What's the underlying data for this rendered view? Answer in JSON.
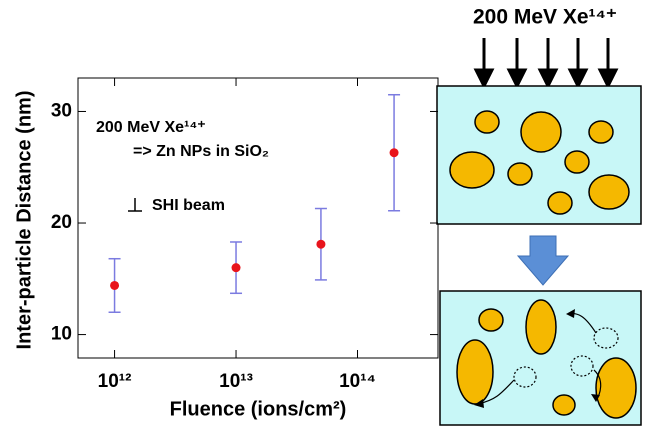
{
  "chart_data": {
    "type": "scatter",
    "x_label": "Fluence (ions/cm²)",
    "y_label": "Inter-particle Distance (nm)",
    "annotations": [
      "200 MeV Xe¹⁴⁺",
      "=> Zn NPs in SiO₂",
      "SHI beam"
    ],
    "x": [
      1000000000000.0,
      10000000000000.0,
      50000000000000.0,
      200000000000000.0
    ],
    "series": [
      {
        "color": "#e8141c",
        "error_color": "#7b7be0",
        "values": [
          14.4,
          16.0,
          18.1,
          26.3
        ],
        "errors": [
          2.4,
          2.3,
          3.2,
          5.2
        ]
      }
    ],
    "x_log": true,
    "xlim": [
      500000000000.0,
      460000000000000.0
    ],
    "xticks": [
      {
        "value": 1000000000000.0,
        "label": "10¹²"
      },
      {
        "value": 10000000000000.0,
        "label": "10¹³"
      },
      {
        "value": 100000000000000.0,
        "label": "10¹⁴"
      }
    ],
    "ylim": [
      7.9,
      33
    ],
    "yticks": [
      10,
      20,
      30
    ]
  },
  "diagram": {
    "beam_label": "200 MeV Xe¹⁴⁺"
  }
}
